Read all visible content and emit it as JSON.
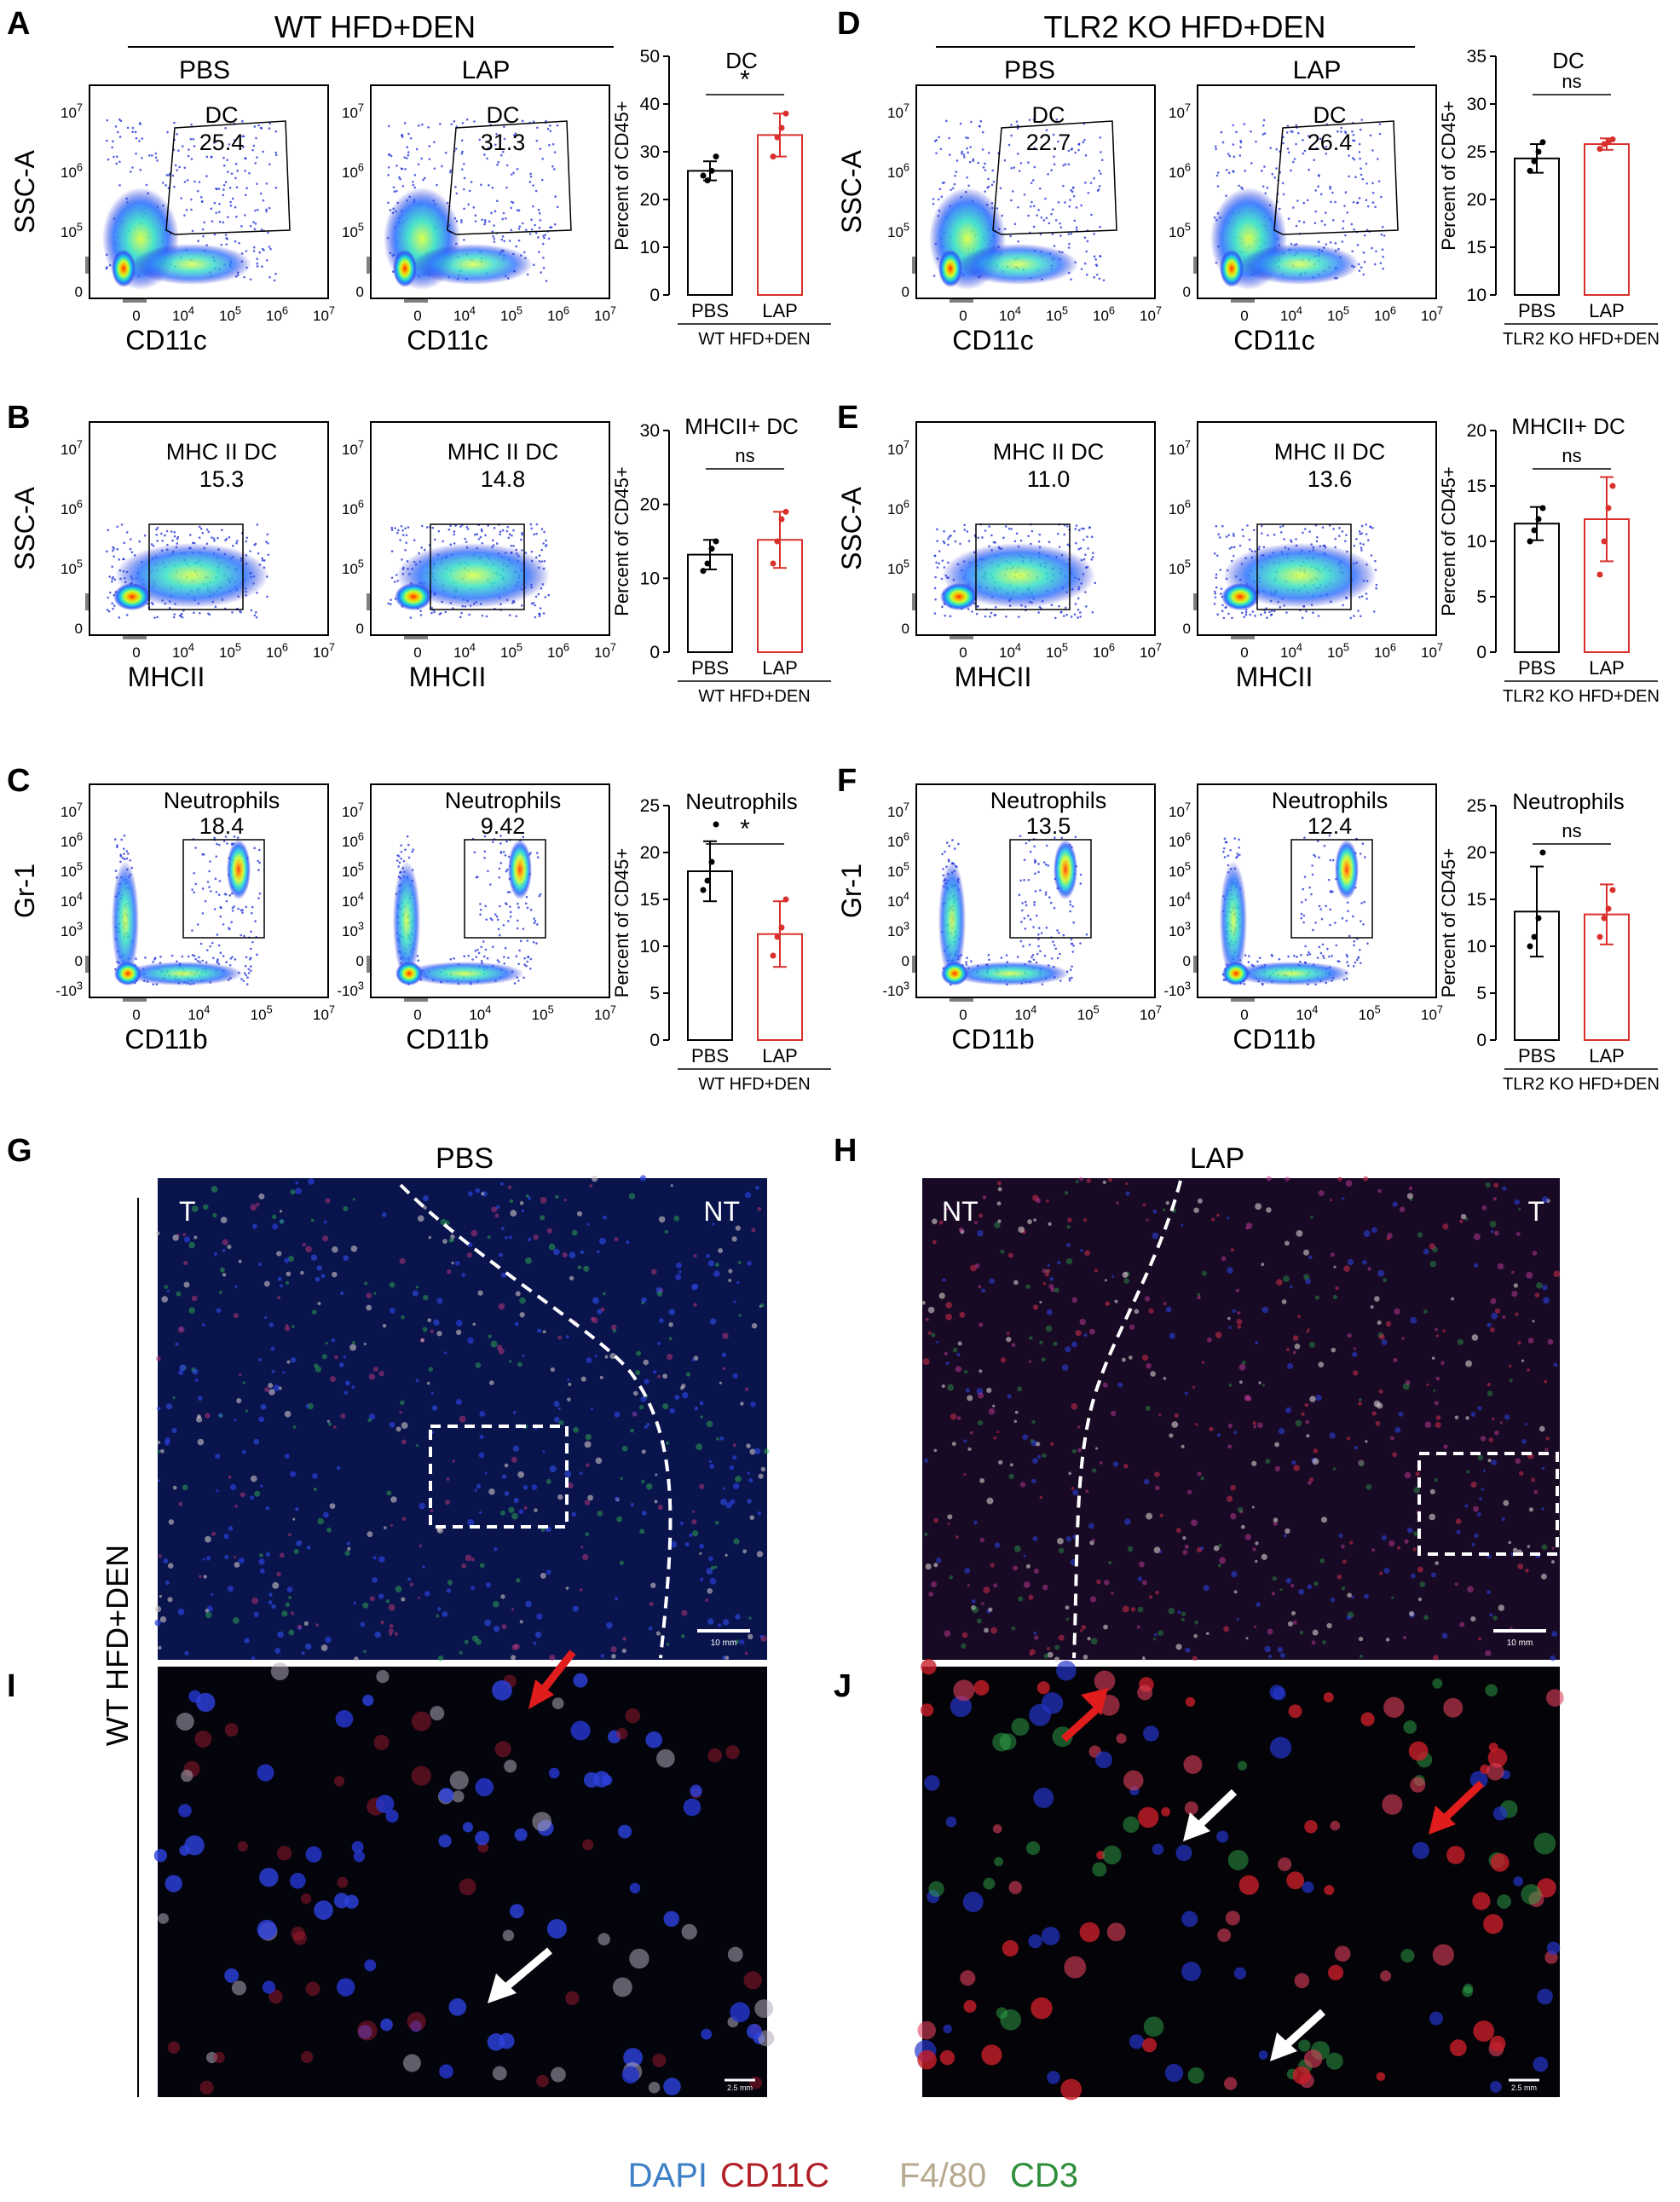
{
  "panel_letters": [
    "A",
    "B",
    "C",
    "D",
    "E",
    "F",
    "G",
    "H",
    "I",
    "J"
  ],
  "left_header": "WT HFD+DEN",
  "right_header": "TLR2 KO HFD+DEN",
  "column_labels": {
    "pbs": "PBS",
    "lap": "LAP"
  },
  "flow_rows": [
    {
      "y_axis_label": "SSC-A",
      "y_ticks": [
        "0",
        "10^5",
        "10^6",
        "10^7"
      ],
      "x_axis_label": "CD11c",
      "x_ticks": [
        "0",
        "10^4",
        "10^5",
        "10^6",
        "10^7"
      ],
      "left": {
        "pbs": {
          "gate": "DC",
          "value": "25.4"
        },
        "lap": {
          "gate": "DC",
          "value": "31.3"
        }
      },
      "right": {
        "pbs": {
          "gate": "DC",
          "value": "22.7"
        },
        "lap": {
          "gate": "DC",
          "value": "26.4"
        }
      }
    },
    {
      "y_axis_label": "SSC-A",
      "y_ticks": [
        "0",
        "10^5",
        "10^6",
        "10^7"
      ],
      "x_axis_label": "MHCII",
      "x_ticks": [
        "0",
        "10^4",
        "10^5",
        "10^6",
        "10^7"
      ],
      "left": {
        "pbs": {
          "gate": "MHC II  DC",
          "value": "15.3"
        },
        "lap": {
          "gate": "MHC II  DC",
          "value": "14.8"
        }
      },
      "right": {
        "pbs": {
          "gate": "MHC II  DC",
          "value": "11.0"
        },
        "lap": {
          "gate": "MHC II  DC",
          "value": "13.6"
        }
      }
    },
    {
      "y_axis_label": "Gr-1",
      "y_ticks": [
        "-10^3",
        "0",
        "10^3",
        "10^4",
        "10^5",
        "10^6",
        "10^7"
      ],
      "x_axis_label": "CD11b",
      "x_ticks": [
        "0",
        "10^4",
        "10^5",
        "10^7"
      ],
      "left": {
        "pbs": {
          "gate": "Neutrophils",
          "value": "18.4"
        },
        "lap": {
          "gate": "Neutrophils",
          "value": "9.42"
        }
      },
      "right": {
        "pbs": {
          "gate": "Neutrophils",
          "value": "13.5"
        },
        "lap": {
          "gate": "Neutrophils",
          "value": "12.4"
        }
      }
    }
  ],
  "chart_data": [
    {
      "type": "bar",
      "panel": "A",
      "title": "DC",
      "ylabel": "Percent of CD45+",
      "ylim": [
        0,
        50
      ],
      "yticks": [
        0,
        10,
        20,
        30,
        40,
        50
      ],
      "categories": [
        "PBS",
        "LAP"
      ],
      "values": [
        26.0,
        33.5
      ],
      "errors": [
        2.0,
        4.5
      ],
      "points": [
        [
          25,
          24,
          26,
          29
        ],
        [
          29,
          33,
          35,
          38
        ]
      ],
      "significance": "*",
      "group_label": "WT HFD+DEN"
    },
    {
      "type": "bar",
      "panel": "B",
      "title": "MHCII+ DC",
      "ylabel": "Percent of CD45+",
      "ylim": [
        0,
        30
      ],
      "yticks": [
        0,
        10,
        20,
        30
      ],
      "categories": [
        "PBS",
        "LAP"
      ],
      "values": [
        13.2,
        15.2
      ],
      "errors": [
        2.0,
        3.8
      ],
      "points": [
        [
          11,
          12,
          14,
          15
        ],
        [
          12,
          15,
          18,
          19
        ]
      ],
      "significance": "ns",
      "group_label": "WT HFD+DEN"
    },
    {
      "type": "bar",
      "panel": "C",
      "title": "Neutrophils",
      "ylabel": "Percent of CD45+",
      "ylim": [
        0,
        25
      ],
      "yticks": [
        0,
        5,
        10,
        15,
        20,
        25
      ],
      "categories": [
        "PBS",
        "LAP"
      ],
      "values": [
        18.0,
        11.3
      ],
      "errors": [
        3.2,
        3.5
      ],
      "points": [
        [
          16,
          17,
          19,
          23
        ],
        [
          9,
          11,
          12,
          15
        ]
      ],
      "significance": "*",
      "group_label": "WT HFD+DEN"
    },
    {
      "type": "bar",
      "panel": "D",
      "title": "DC",
      "ylabel": "Percent of CD45+",
      "ylim": [
        10,
        35
      ],
      "yticks": [
        10,
        15,
        20,
        25,
        30,
        35
      ],
      "categories": [
        "PBS",
        "LAP"
      ],
      "values": [
        24.3,
        25.8
      ],
      "errors": [
        1.5,
        0.6
      ],
      "points": [
        [
          23,
          24,
          25,
          26
        ],
        [
          25.3,
          25.8,
          26,
          26.3
        ]
      ],
      "significance": "ns",
      "group_label": "TLR2 KO HFD+DEN"
    },
    {
      "type": "bar",
      "panel": "E",
      "title": "MHCII+ DC",
      "ylabel": "Percent of CD45+",
      "ylim": [
        0,
        20
      ],
      "yticks": [
        0,
        5,
        10,
        15,
        20
      ],
      "categories": [
        "PBS",
        "LAP"
      ],
      "values": [
        11.6,
        12.0
      ],
      "errors": [
        1.5,
        3.8
      ],
      "points": [
        [
          10,
          11,
          12,
          13
        ],
        [
          7,
          10,
          13,
          15
        ]
      ],
      "significance": "ns",
      "group_label": "TLR2 KO HFD+DEN"
    },
    {
      "type": "bar",
      "panel": "F",
      "title": "Neutrophils",
      "ylabel": "Percent of CD45+",
      "ylim": [
        0,
        25
      ],
      "yticks": [
        0,
        5,
        10,
        15,
        20,
        25
      ],
      "categories": [
        "PBS",
        "LAP"
      ],
      "values": [
        13.7,
        13.4
      ],
      "errors": [
        4.8,
        3.2
      ],
      "points": [
        [
          10,
          11,
          13,
          20
        ],
        [
          11,
          13,
          14,
          16
        ]
      ],
      "significance": "ns",
      "group_label": "TLR2 KO HFD+DEN"
    }
  ],
  "micro": {
    "g_title": "PBS",
    "h_title": "LAP",
    "side_label": "WT HFD+DEN",
    "g_regions": [
      "T",
      "NT"
    ],
    "h_regions": [
      "NT",
      "T"
    ],
    "scale_top": "10 mm",
    "scale_bottom": "2.5 mm",
    "legend": [
      {
        "text": "DAPI",
        "color": "#3d7fc6"
      },
      {
        "text": "CD11C",
        "color": "#b22027"
      },
      {
        "text": "F4/80",
        "color": "#b7a98e"
      },
      {
        "text": "CD3",
        "color": "#2f8f3a"
      }
    ]
  },
  "colors": {
    "lap": "#d9302c",
    "pbs": "#000000"
  }
}
